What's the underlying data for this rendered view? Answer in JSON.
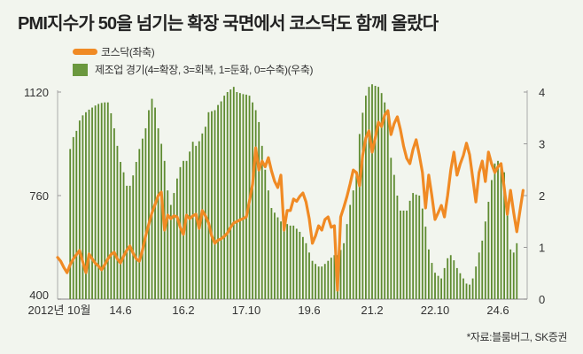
{
  "chart_data": {
    "type": "bar+line",
    "title": "PMI지수가 50을 넘기는 확장 국면에서 코스닥도 함께 올랐다",
    "source": "*자료:블룸버그, SK증권",
    "x_start": "2012-10",
    "x_unit": "month",
    "x_tick_labels": [
      {
        "index": 0,
        "label": "2012년 10월"
      },
      {
        "index": 20,
        "label": "14.6"
      },
      {
        "index": 40,
        "label": "16.2"
      },
      {
        "index": 60,
        "label": "17.10"
      },
      {
        "index": 80,
        "label": "19.6"
      },
      {
        "index": 100,
        "label": "21.2"
      },
      {
        "index": 120,
        "label": "22.10"
      },
      {
        "index": 140,
        "label": "24.6"
      }
    ],
    "left_axis": {
      "ylim": [
        400,
        1120
      ],
      "ticks": [
        "1120",
        "760",
        "400"
      ]
    },
    "right_axis": {
      "ylim": [
        0,
        4
      ],
      "ticks": [
        "4",
        "3",
        "2",
        "1",
        "0"
      ]
    },
    "colors": {
      "kosdaq": "#f08a24",
      "manufacturing": "#5e8b30"
    },
    "series": [
      {
        "name": "코스닥(좌축)",
        "axis": "left",
        "kind": "line",
        "values": [
          545,
          532,
          510,
          492,
          520,
          540,
          555,
          569,
          530,
          492,
          557,
          540,
          525,
          515,
          502,
          520,
          540,
          555,
          563,
          540,
          526,
          550,
          570,
          585,
          560,
          540,
          532,
          570,
          620,
          660,
          700,
          730,
          760,
          772,
          640,
          692,
          680,
          690,
          686,
          650,
          625,
          692,
          680,
          690,
          695,
          646,
          708,
          690,
          665,
          620,
          594,
          605,
          610,
          618,
          630,
          650,
          665,
          670,
          675,
          680,
          686,
          740,
          800,
          926,
          849,
          880,
          860,
          892,
          846,
          810,
          788,
          831,
          640,
          708,
          708,
          748,
          740,
          757,
          769,
          738,
          680,
          594,
          620,
          655,
          640,
          677,
          686,
          650,
          655,
          431,
          686,
          720,
          757,
          800,
          849,
          840,
          794,
          900,
          960,
          985,
          911,
          960,
          1015,
          1000,
          1040,
          1055,
          972,
          1010,
          1034,
          990,
          932,
          890,
          871,
          920,
          954,
          900,
          840,
          717,
          831,
          760,
          677,
          700,
          726,
          686,
          760,
          850,
          911,
          831,
          870,
          900,
          942,
          902,
          820,
          738,
          840,
          880,
          809,
          911,
          870,
          840,
          860,
          871,
          788,
          695,
          778,
          700,
          634,
          708,
          778
        ]
      },
      {
        "name": "제조업 경기(4=확장, 3=회복, 1=둔화, 0=수축)(우축)",
        "axis": "right",
        "kind": "bar",
        "values": [
          null,
          null,
          null,
          null,
          2.9,
          3.13,
          3.25,
          3.45,
          3.55,
          3.61,
          3.66,
          3.7,
          3.74,
          3.77,
          3.79,
          3.8,
          3.8,
          3.59,
          3.3,
          2.96,
          2.65,
          2.45,
          2.19,
          2.19,
          2.39,
          2.65,
          2.9,
          3.1,
          3.3,
          3.65,
          3.87,
          3.7,
          3.3,
          3.0,
          2.67,
          2.1,
          1.82,
          2.05,
          2.33,
          2.55,
          2.67,
          2.67,
          2.85,
          3.04,
          2.96,
          3.05,
          3.2,
          3.33,
          3.61,
          3.63,
          3.65,
          3.75,
          3.82,
          3.93,
          4.0,
          4.05,
          4.1,
          4.0,
          3.98,
          3.96,
          3.95,
          3.93,
          3.8,
          3.65,
          3.42,
          2.96,
          2.5,
          2.1,
          1.76,
          1.67,
          1.58,
          1.5,
          1.48,
          1.45,
          1.42,
          1.42,
          1.36,
          1.3,
          1.2,
          1.08,
          0.9,
          0.74,
          0.68,
          0.63,
          0.63,
          0.68,
          0.74,
          0.8,
          0.85,
          0.85,
          0.95,
          1.08,
          1.45,
          1.82,
          2.1,
          2.39,
          3.19,
          3.6,
          3.93,
          4.1,
          4.15,
          4.12,
          4.1,
          3.98,
          3.8,
          3.59,
          2.73,
          2.4,
          2.0,
          1.71,
          1.71,
          1.71,
          1.9,
          2.05,
          2.02,
          2.0,
          1.75,
          1.4,
          0.96,
          0.7,
          0.51,
          0.45,
          0.4,
          0.6,
          0.79,
          0.85,
          0.75,
          0.6,
          0.5,
          0.4,
          0.3,
          0.28,
          0.4,
          0.63,
          0.9,
          1.13,
          1.5,
          1.88,
          2.3,
          2.62,
          2.67,
          2.6,
          2.45,
          1.76,
          0.96,
          0.9,
          1.08
        ]
      }
    ],
    "legend": [
      "코스닥(좌축)",
      "제조업 경기(4=확장, 3=회복, 1=둔화, 0=수축)(우축)"
    ],
    "legend_position": "top-left",
    "grid": false
  }
}
